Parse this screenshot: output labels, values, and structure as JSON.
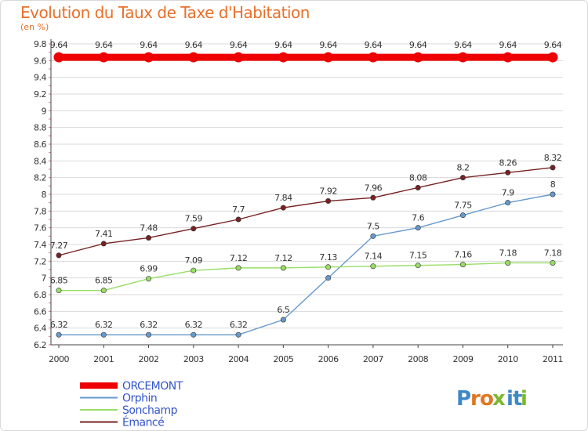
{
  "header": {
    "title": "Evolution du Taux de Taxe d'Habitation",
    "subtitle": "(en %)"
  },
  "logo": {
    "text": "Proxiti",
    "letters": [
      "P",
      "r",
      "o",
      "x",
      "i",
      "t",
      "i"
    ],
    "colors": [
      "#3d88c8",
      "#e0761f",
      "#e0761f",
      "#7cb82f",
      "#3d88c8",
      "#3d88c8",
      "#7cb82f"
    ]
  },
  "chart_data": {
    "type": "line",
    "title": "Evolution du Taux de Taxe d'Habitation",
    "subtitle": "(en %)",
    "xlabel": "",
    "ylabel": "",
    "x": [
      "2000",
      "2001",
      "2002",
      "2003",
      "2004",
      "2005",
      "2006",
      "2007",
      "2008",
      "2009",
      "2010",
      "2011"
    ],
    "ylim": [
      6.2,
      9.8
    ],
    "yticks": [
      6.2,
      6.4,
      6.6,
      6.8,
      7,
      7.2,
      7.4,
      7.6,
      7.8,
      8,
      8.2,
      8.4,
      8.6,
      8.8,
      9,
      9.2,
      9.4,
      9.6,
      9.8
    ],
    "ytick_labels": [
      "6.2",
      "6.4",
      "6.6",
      "6.8",
      "7",
      "7.2",
      "7.4",
      "7.6",
      "7.8",
      "8",
      "8.2",
      "8.4",
      "8.6",
      "8.8",
      "9",
      "9.2",
      "9.4",
      "9.6",
      "9.8"
    ],
    "grid": "horizontal",
    "legend_position": "bottom-left",
    "series": [
      {
        "name": "ORCEMONT",
        "color": "#ee0000",
        "highlight": true,
        "values": [
          9.64,
          9.64,
          9.64,
          9.64,
          9.64,
          9.64,
          9.64,
          9.64,
          9.64,
          9.64,
          9.64,
          9.64
        ],
        "labels": [
          "9.64",
          "9.64",
          "9.64",
          "9.64",
          "9.64",
          "9.64",
          "9.64",
          "9.64",
          "9.64",
          "9.64",
          "9.64",
          "9.64"
        ]
      },
      {
        "name": "Orphin",
        "color": "#6699cc",
        "values": [
          6.32,
          6.32,
          6.32,
          6.32,
          6.32,
          6.5,
          7.0,
          7.5,
          7.6,
          7.75,
          7.9,
          8.0
        ],
        "labels": [
          "6.32",
          "6.32",
          "6.32",
          "6.32",
          "6.32",
          "6.5",
          "",
          "7.5",
          "7.6",
          "7.75",
          "7.9",
          "8"
        ]
      },
      {
        "name": "Sonchamp",
        "color": "#99dd66",
        "values": [
          6.85,
          6.85,
          6.99,
          7.09,
          7.12,
          7.12,
          7.13,
          7.14,
          7.15,
          7.16,
          7.18,
          7.18
        ],
        "labels": [
          "6.85",
          "6.85",
          "6.99",
          "7.09",
          "7.12",
          "7.12",
          "7.13",
          "7.14",
          "7.15",
          "7.16",
          "7.18",
          "7.18"
        ]
      },
      {
        "name": "Émancé",
        "color": "#772222",
        "values": [
          7.27,
          7.41,
          7.48,
          7.59,
          7.7,
          7.84,
          7.92,
          7.96,
          8.08,
          8.2,
          8.26,
          8.32
        ],
        "labels": [
          "7.27",
          "7.41",
          "7.48",
          "7.59",
          "7.7",
          "7.84",
          "7.92",
          "7.96",
          "8.08",
          "8.2",
          "8.26",
          "8.32"
        ]
      }
    ]
  }
}
